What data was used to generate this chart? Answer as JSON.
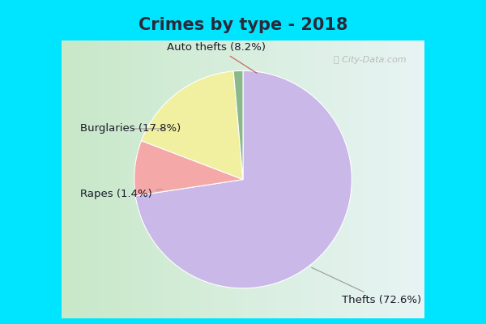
{
  "title": "Crimes by type - 2018",
  "slices": [
    {
      "label": "Thefts",
      "pct": 72.6,
      "color": "#c9b8e8"
    },
    {
      "label": "Auto thefts",
      "pct": 8.2,
      "color": "#f4a8a8"
    },
    {
      "label": "Burglaries",
      "pct": 17.8,
      "color": "#f0f0a0"
    },
    {
      "label": "Rapes",
      "pct": 1.4,
      "color": "#8ab88a"
    }
  ],
  "bg_cyan": "#00e5ff",
  "bg_inner_left": "#c8e8c8",
  "bg_inner_right": "#e8f4f4",
  "title_fontsize": 15,
  "label_fontsize": 9.5,
  "startangle": 90,
  "watermark": "ⓘ City-Data.com",
  "border_width": 10,
  "title_color": "#2a2a3a"
}
